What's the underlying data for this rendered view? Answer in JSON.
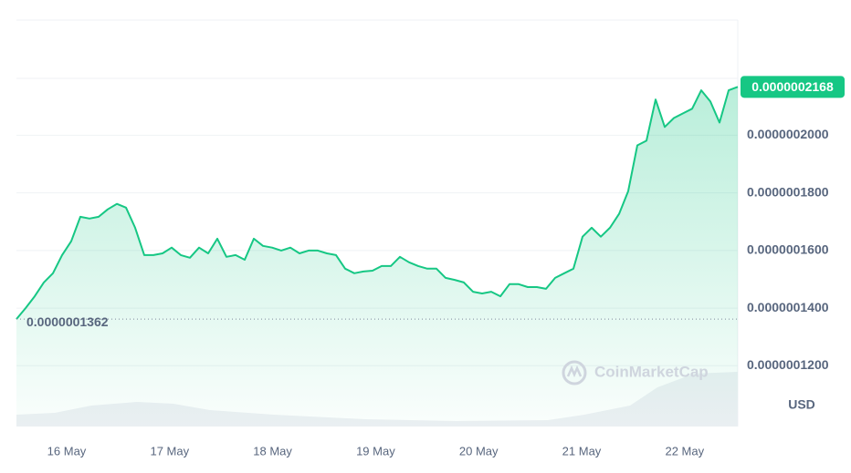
{
  "chart_data": {
    "type": "line",
    "series": [
      {
        "name": "Price",
        "color": "#16c784",
        "values": [
          1.362e-07,
          1.4e-07,
          1.441e-07,
          1.489e-07,
          1.521e-07,
          1.584e-07,
          1.632e-07,
          1.717e-07,
          1.711e-07,
          1.717e-07,
          1.743e-07,
          1.762e-07,
          1.749e-07,
          1.679e-07,
          1.584e-07,
          1.584e-07,
          1.59e-07,
          1.61e-07,
          1.584e-07,
          1.575e-07,
          1.61e-07,
          1.59e-07,
          1.641e-07,
          1.578e-07,
          1.584e-07,
          1.568e-07,
          1.641e-07,
          1.616e-07,
          1.61e-07,
          1.6e-07,
          1.61e-07,
          1.59e-07,
          1.6e-07,
          1.6e-07,
          1.59e-07,
          1.584e-07,
          1.537e-07,
          1.521e-07,
          1.527e-07,
          1.53e-07,
          1.546e-07,
          1.546e-07,
          1.578e-07,
          1.559e-07,
          1.546e-07,
          1.537e-07,
          1.537e-07,
          1.505e-07,
          1.498e-07,
          1.489e-07,
          1.457e-07,
          1.451e-07,
          1.457e-07,
          1.441e-07,
          1.483e-07,
          1.483e-07,
          1.473e-07,
          1.473e-07,
          1.467e-07,
          1.505e-07,
          1.521e-07,
          1.537e-07,
          1.648e-07,
          1.679e-07,
          1.648e-07,
          1.679e-07,
          1.727e-07,
          1.806e-07,
          1.965e-07,
          1.981e-07,
          2.124e-07,
          2.029e-07,
          2.06e-07,
          2.076e-07,
          2.092e-07,
          2.156e-07,
          2.117e-07,
          2.044e-07,
          2.156e-07,
          2.168e-07
        ]
      }
    ],
    "xtick_labels": [
      "16 May",
      "17 May",
      "18 May",
      "19 May",
      "20 May",
      "21 May",
      "22 May"
    ],
    "ylim": [
      1e-07,
      2.4e-07
    ],
    "yticks": [
      {
        "value": 1.2e-07,
        "label": "0.0000001200"
      },
      {
        "value": 1.4e-07,
        "label": "0.0000001400"
      },
      {
        "value": 1.6e-07,
        "label": "0.0000001600"
      },
      {
        "value": 1.8e-07,
        "label": "0.0000001800"
      },
      {
        "value": 2e-07,
        "label": "0.0000002000"
      }
    ],
    "grid": true,
    "reference": {
      "value": 1.362e-07,
      "label": "0.0000001362"
    },
    "current_price": {
      "value": 2.168e-07,
      "label": "0.0000002168"
    },
    "currency": "USD",
    "watermark": "CoinMarketCap"
  }
}
